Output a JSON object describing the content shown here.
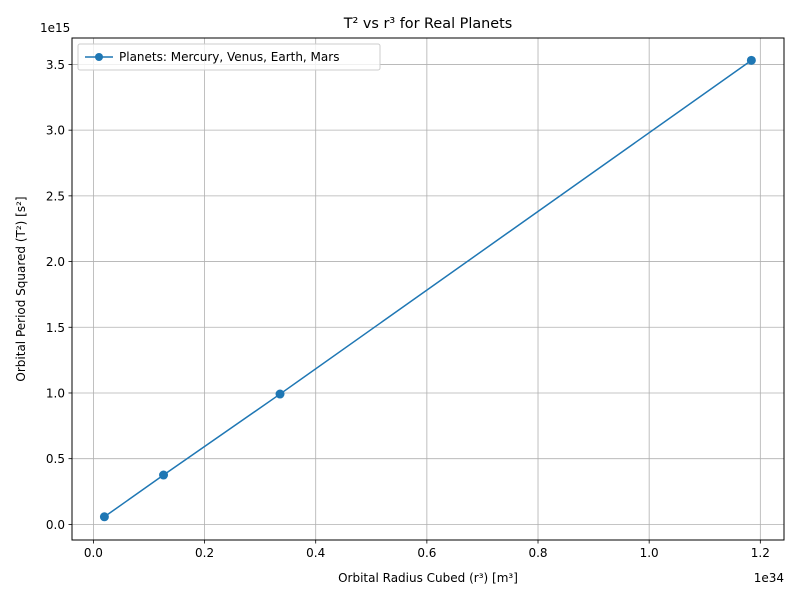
{
  "chart_data": {
    "type": "line",
    "title": "T² vs r³ for Real Planets",
    "xlabel": "Orbital Radius Cubed (r³) [m³]",
    "ylabel": "Orbital Period Squared (T²) [s²]",
    "x_offset_text": "1e34",
    "y_offset_text": "1e15",
    "xlim": [
      -0.0385,
      1.2426
    ],
    "ylim": [
      -0.1188,
      3.7013
    ],
    "x_ticks": [
      0.0,
      0.2,
      0.4,
      0.6,
      0.8,
      1.0,
      1.2
    ],
    "x_tick_labels": [
      "0.0",
      "0.2",
      "0.4",
      "0.6",
      "0.8",
      "1.0",
      "1.2"
    ],
    "y_ticks": [
      0.0,
      0.5,
      1.0,
      1.5,
      2.0,
      2.5,
      3.0,
      3.5
    ],
    "y_tick_labels": [
      "0.0",
      "0.5",
      "1.0",
      "1.5",
      "2.0",
      "2.5",
      "3.0",
      "3.5"
    ],
    "grid": true,
    "legend_location": "upper-left",
    "series": [
      {
        "name": "Planets: Mercury, Venus, Earth, Mars",
        "color": "#1f77b4",
        "marker": "circle",
        "x": [
          0.0198,
          0.1262,
          0.3358,
          1.1839
        ],
        "y": [
          0.0578,
          0.3755,
          0.9918,
          3.5311
        ]
      }
    ]
  }
}
